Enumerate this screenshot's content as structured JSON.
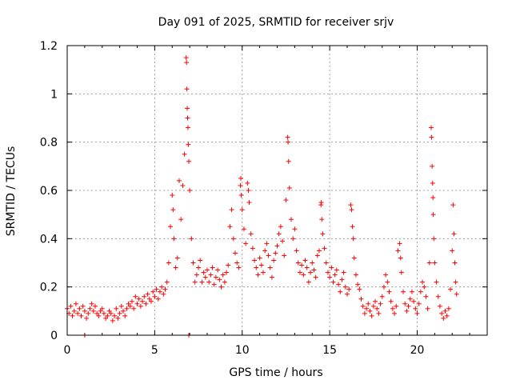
{
  "chart_data": {
    "type": "scatter",
    "title": "Day 091 of 2025, SRMTID for receiver srjv",
    "xlabel": "GPS time / hours",
    "ylabel": "SRMTID / TECUs",
    "xlim": [
      0,
      24
    ],
    "ylim": [
      0,
      1.2
    ],
    "xticks": [
      0,
      5,
      10,
      15,
      20
    ],
    "xtick_labels": [
      "0",
      "5",
      "10",
      "15",
      "20"
    ],
    "yticks": [
      0,
      0.2,
      0.4,
      0.6,
      0.8,
      1.0,
      1.2
    ],
    "ytick_labels": [
      "0",
      "0.2",
      "0.4",
      "0.6",
      "0.8",
      "1",
      "1.2"
    ],
    "grid": true,
    "colors": {
      "series": "#ff0000",
      "grid": "#a0a0a0"
    },
    "series": [
      {
        "name": "SRMTID",
        "marker": "plus",
        "points": [
          [
            0.0,
            0.11
          ],
          [
            0.1,
            0.09
          ],
          [
            0.2,
            0.12
          ],
          [
            0.3,
            0.08
          ],
          [
            0.4,
            0.1
          ],
          [
            0.5,
            0.13
          ],
          [
            0.6,
            0.09
          ],
          [
            0.7,
            0.11
          ],
          [
            0.8,
            0.08
          ],
          [
            0.9,
            0.12
          ],
          [
            1.0,
            0.1
          ],
          [
            1.1,
            0.07
          ],
          [
            1.2,
            0.09
          ],
          [
            1.3,
            0.11
          ],
          [
            1.4,
            0.13
          ],
          [
            1.5,
            0.1
          ],
          [
            1.6,
            0.12
          ],
          [
            1.7,
            0.09
          ],
          [
            1.8,
            0.08
          ],
          [
            1.9,
            0.1
          ],
          [
            2.0,
            0.11
          ],
          [
            2.1,
            0.09
          ],
          [
            2.2,
            0.07
          ],
          [
            2.3,
            0.08
          ],
          [
            2.4,
            0.1
          ],
          [
            2.5,
            0.09
          ],
          [
            2.6,
            0.06
          ],
          [
            2.7,
            0.08
          ],
          [
            2.8,
            0.11
          ],
          [
            2.9,
            0.07
          ],
          [
            3.0,
            0.09
          ],
          [
            3.1,
            0.12
          ],
          [
            3.2,
            0.1
          ],
          [
            3.3,
            0.08
          ],
          [
            3.4,
            0.11
          ],
          [
            3.5,
            0.13
          ],
          [
            3.6,
            0.12
          ],
          [
            3.7,
            0.14
          ],
          [
            3.8,
            0.11
          ],
          [
            3.9,
            0.16
          ],
          [
            4.0,
            0.13
          ],
          [
            4.1,
            0.15
          ],
          [
            4.2,
            0.12
          ],
          [
            4.3,
            0.14
          ],
          [
            4.4,
            0.16
          ],
          [
            4.5,
            0.13
          ],
          [
            4.6,
            0.17
          ],
          [
            4.7,
            0.15
          ],
          [
            4.8,
            0.14
          ],
          [
            4.9,
            0.18
          ],
          [
            5.0,
            0.16
          ],
          [
            5.1,
            0.19
          ],
          [
            5.2,
            0.15
          ],
          [
            5.3,
            0.18
          ],
          [
            5.4,
            0.2
          ],
          [
            5.5,
            0.17
          ],
          [
            5.6,
            0.19
          ],
          [
            5.7,
            0.22
          ],
          [
            5.8,
            0.3
          ],
          [
            5.9,
            0.45
          ],
          [
            6.0,
            0.58
          ],
          [
            6.05,
            0.52
          ],
          [
            6.1,
            0.4
          ],
          [
            6.2,
            0.28
          ],
          [
            6.3,
            0.32
          ],
          [
            6.4,
            0.64
          ],
          [
            6.5,
            0.48
          ],
          [
            6.6,
            0.62
          ],
          [
            6.7,
            0.75
          ],
          [
            6.8,
            1.15
          ],
          [
            6.82,
            1.13
          ],
          [
            6.84,
            1.02
          ],
          [
            6.86,
            0.94
          ],
          [
            6.88,
            0.9
          ],
          [
            6.9,
            0.86
          ],
          [
            6.92,
            0.79
          ],
          [
            6.95,
            0.72
          ],
          [
            7.0,
            0.6
          ],
          [
            7.1,
            0.4
          ],
          [
            7.2,
            0.3
          ],
          [
            7.3,
            0.22
          ],
          [
            7.4,
            0.25
          ],
          [
            7.5,
            0.28
          ],
          [
            7.6,
            0.31
          ],
          [
            7.7,
            0.22
          ],
          [
            7.8,
            0.26
          ],
          [
            7.9,
            0.24
          ],
          [
            8.0,
            0.27
          ],
          [
            8.1,
            0.22
          ],
          [
            8.2,
            0.25
          ],
          [
            8.3,
            0.28
          ],
          [
            8.4,
            0.21
          ],
          [
            8.5,
            0.24
          ],
          [
            8.6,
            0.27
          ],
          [
            8.7,
            0.23
          ],
          [
            8.8,
            0.2
          ],
          [
            8.9,
            0.25
          ],
          [
            9.0,
            0.22
          ],
          [
            9.1,
            0.26
          ],
          [
            9.2,
            0.29
          ],
          [
            9.3,
            0.45
          ],
          [
            9.4,
            0.52
          ],
          [
            9.5,
            0.4
          ],
          [
            9.6,
            0.34
          ],
          [
            9.7,
            0.3
          ],
          [
            9.8,
            0.28
          ],
          [
            9.9,
            0.62
          ],
          [
            9.92,
            0.65
          ],
          [
            9.95,
            0.58
          ],
          [
            10.0,
            0.52
          ],
          [
            10.1,
            0.44
          ],
          [
            10.2,
            0.38
          ],
          [
            10.3,
            0.63
          ],
          [
            10.35,
            0.6
          ],
          [
            10.4,
            0.55
          ],
          [
            10.5,
            0.42
          ],
          [
            10.6,
            0.36
          ],
          [
            10.7,
            0.31
          ],
          [
            10.8,
            0.28
          ],
          [
            10.9,
            0.25
          ],
          [
            11.0,
            0.32
          ],
          [
            11.1,
            0.29
          ],
          [
            11.2,
            0.26
          ],
          [
            11.3,
            0.35
          ],
          [
            11.4,
            0.38
          ],
          [
            11.5,
            0.33
          ],
          [
            11.6,
            0.28
          ],
          [
            11.7,
            0.24
          ],
          [
            11.8,
            0.31
          ],
          [
            11.9,
            0.34
          ],
          [
            12.0,
            0.37
          ],
          [
            12.1,
            0.42
          ],
          [
            12.2,
            0.45
          ],
          [
            12.3,
            0.39
          ],
          [
            12.4,
            0.33
          ],
          [
            12.5,
            0.56
          ],
          [
            12.6,
            0.82
          ],
          [
            12.62,
            0.8
          ],
          [
            12.65,
            0.72
          ],
          [
            12.7,
            0.61
          ],
          [
            12.8,
            0.48
          ],
          [
            12.9,
            0.4
          ],
          [
            13.0,
            0.44
          ],
          [
            13.1,
            0.35
          ],
          [
            13.2,
            0.3
          ],
          [
            13.3,
            0.26
          ],
          [
            13.4,
            0.29
          ],
          [
            13.5,
            0.25
          ],
          [
            13.6,
            0.31
          ],
          [
            13.7,
            0.28
          ],
          [
            13.8,
            0.22
          ],
          [
            13.9,
            0.26
          ],
          [
            14.0,
            0.3
          ],
          [
            14.1,
            0.27
          ],
          [
            14.2,
            0.24
          ],
          [
            14.3,
            0.33
          ],
          [
            14.4,
            0.35
          ],
          [
            14.5,
            0.54
          ],
          [
            14.52,
            0.55
          ],
          [
            14.55,
            0.48
          ],
          [
            14.6,
            0.42
          ],
          [
            14.7,
            0.36
          ],
          [
            14.8,
            0.3
          ],
          [
            14.9,
            0.26
          ],
          [
            15.0,
            0.24
          ],
          [
            15.1,
            0.28
          ],
          [
            15.2,
            0.22
          ],
          [
            15.3,
            0.25
          ],
          [
            15.4,
            0.27
          ],
          [
            15.5,
            0.21
          ],
          [
            15.6,
            0.18
          ],
          [
            15.7,
            0.23
          ],
          [
            15.8,
            0.26
          ],
          [
            15.9,
            0.2
          ],
          [
            16.0,
            0.17
          ],
          [
            16.1,
            0.19
          ],
          [
            16.2,
            0.54
          ],
          [
            16.25,
            0.52
          ],
          [
            16.3,
            0.45
          ],
          [
            16.35,
            0.4
          ],
          [
            16.4,
            0.32
          ],
          [
            16.5,
            0.25
          ],
          [
            16.6,
            0.21
          ],
          [
            16.7,
            0.19
          ],
          [
            16.8,
            0.15
          ],
          [
            16.9,
            0.12
          ],
          [
            17.0,
            0.09
          ],
          [
            17.1,
            0.11
          ],
          [
            17.2,
            0.13
          ],
          [
            17.3,
            0.1
          ],
          [
            17.4,
            0.08
          ],
          [
            17.5,
            0.12
          ],
          [
            17.6,
            0.14
          ],
          [
            17.7,
            0.11
          ],
          [
            17.8,
            0.09
          ],
          [
            17.9,
            0.13
          ],
          [
            18.0,
            0.16
          ],
          [
            18.1,
            0.2
          ],
          [
            18.2,
            0.25
          ],
          [
            18.3,
            0.22
          ],
          [
            18.4,
            0.18
          ],
          [
            18.5,
            0.14
          ],
          [
            18.6,
            0.11
          ],
          [
            18.7,
            0.09
          ],
          [
            18.8,
            0.12
          ],
          [
            18.9,
            0.35
          ],
          [
            19.0,
            0.38
          ],
          [
            19.05,
            0.32
          ],
          [
            19.1,
            0.26
          ],
          [
            19.2,
            0.18
          ],
          [
            19.3,
            0.13
          ],
          [
            19.4,
            0.1
          ],
          [
            19.5,
            0.12
          ],
          [
            19.6,
            0.15
          ],
          [
            19.7,
            0.18
          ],
          [
            19.8,
            0.14
          ],
          [
            19.9,
            0.11
          ],
          [
            20.0,
            0.09
          ],
          [
            20.1,
            0.13
          ],
          [
            20.2,
            0.18
          ],
          [
            20.3,
            0.22
          ],
          [
            20.4,
            0.2
          ],
          [
            20.5,
            0.16
          ],
          [
            20.6,
            0.11
          ],
          [
            20.7,
            0.3
          ],
          [
            20.8,
            0.86
          ],
          [
            20.82,
            0.82
          ],
          [
            20.85,
            0.7
          ],
          [
            20.88,
            0.63
          ],
          [
            20.9,
            0.57
          ],
          [
            20.92,
            0.5
          ],
          [
            20.95,
            0.4
          ],
          [
            21.0,
            0.3
          ],
          [
            21.1,
            0.22
          ],
          [
            21.2,
            0.16
          ],
          [
            21.3,
            0.12
          ],
          [
            21.4,
            0.09
          ],
          [
            21.5,
            0.07
          ],
          [
            21.6,
            0.1
          ],
          [
            21.7,
            0.08
          ],
          [
            21.8,
            0.11
          ],
          [
            21.9,
            0.19
          ],
          [
            22.0,
            0.35
          ],
          [
            22.05,
            0.54
          ],
          [
            22.1,
            0.42
          ],
          [
            22.15,
            0.3
          ],
          [
            22.2,
            0.22
          ],
          [
            22.25,
            0.17
          ],
          [
            1.0,
            0.0
          ],
          [
            6.95,
            0.0
          ]
        ]
      }
    ]
  }
}
